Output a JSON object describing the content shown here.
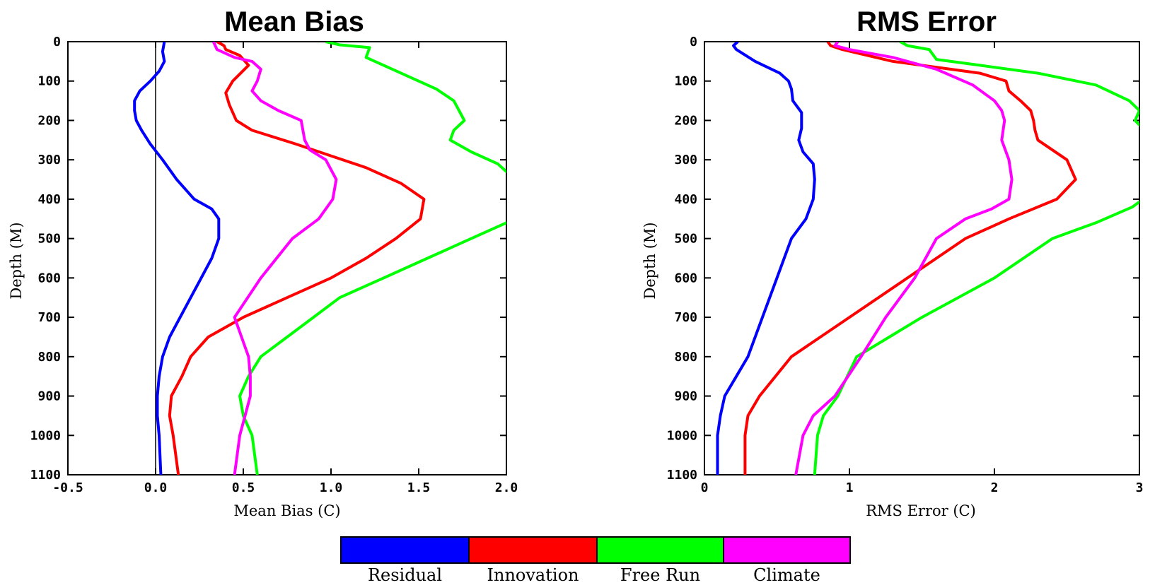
{
  "chart_data": [
    {
      "type": "line",
      "title": "Mean Bias",
      "xlabel": "Mean Bias (C)",
      "ylabel": "Depth (M)",
      "xlim": [
        -0.5,
        2.0
      ],
      "ylim": [
        0,
        1100
      ],
      "y_inverted": true,
      "xticks": [
        "-0.5",
        "0.0",
        "0.5",
        "1.0",
        "1.5",
        "2.0"
      ],
      "yticks": [
        "0",
        "100",
        "200",
        "300",
        "400",
        "500",
        "600",
        "700",
        "800",
        "900",
        "1000",
        "1100"
      ],
      "reference_line_x": 0,
      "series": [
        {
          "name": "Residual",
          "color": "#0000ff",
          "x": [
            0.05,
            0.04,
            0.05,
            0.02,
            -0.03,
            -0.09,
            -0.12,
            -0.12,
            -0.11,
            -0.08,
            -0.03,
            0.04,
            0.12,
            0.22,
            0.32,
            0.36,
            0.36,
            0.32,
            0.26,
            0.2,
            0.14,
            0.08,
            0.04,
            0.02,
            0.01,
            0.01,
            0.02,
            0.03
          ],
          "y": [
            0,
            25,
            50,
            75,
            100,
            125,
            150,
            175,
            200,
            225,
            260,
            300,
            350,
            400,
            425,
            450,
            500,
            550,
            600,
            650,
            700,
            750,
            800,
            850,
            900,
            950,
            1000,
            1100
          ]
        },
        {
          "name": "Innovation",
          "color": "#ff0000",
          "x": [
            0.35,
            0.39,
            0.4,
            0.48,
            0.53,
            0.44,
            0.4,
            0.42,
            0.46,
            0.55,
            0.8,
            1.0,
            1.2,
            1.4,
            1.53,
            1.51,
            1.37,
            1.2,
            1.0,
            0.75,
            0.5,
            0.3,
            0.2,
            0.15,
            0.09,
            0.08,
            0.1,
            0.13
          ],
          "y": [
            0,
            10,
            20,
            35,
            60,
            100,
            130,
            160,
            200,
            225,
            260,
            290,
            320,
            360,
            400,
            450,
            500,
            550,
            600,
            650,
            700,
            750,
            800,
            850,
            900,
            950,
            1000,
            1100
          ]
        },
        {
          "name": "Free Run",
          "color": "#00ff00",
          "x": [
            0.97,
            1.05,
            1.22,
            1.2,
            1.3,
            1.45,
            1.6,
            1.7,
            1.76,
            1.7,
            1.68,
            1.8,
            1.95,
            2.05,
            2.13,
            2.05,
            1.8,
            1.55,
            1.3,
            1.05,
            0.9,
            0.75,
            0.6,
            0.53,
            0.48,
            0.5,
            0.55,
            0.58
          ],
          "y": [
            0,
            8,
            15,
            40,
            60,
            90,
            120,
            150,
            200,
            225,
            250,
            280,
            310,
            350,
            400,
            450,
            500,
            550,
            600,
            650,
            700,
            750,
            800,
            850,
            900,
            950,
            1000,
            1100
          ]
        },
        {
          "name": "Climate",
          "color": "#ff00ff",
          "x": [
            0.33,
            0.35,
            0.45,
            0.55,
            0.6,
            0.58,
            0.55,
            0.6,
            0.7,
            0.83,
            0.85,
            0.88,
            0.97,
            1.03,
            1.01,
            0.93,
            0.78,
            0.6,
            0.45,
            0.49,
            0.53,
            0.54,
            0.54,
            0.51,
            0.48,
            0.45
          ],
          "y": [
            0,
            20,
            40,
            50,
            70,
            100,
            125,
            150,
            175,
            200,
            250,
            275,
            300,
            350,
            400,
            450,
            500,
            600,
            700,
            750,
            800,
            850,
            900,
            950,
            1000,
            1100
          ]
        }
      ]
    },
    {
      "type": "line",
      "title": "RMS Error",
      "xlabel": "RMS Error (C)",
      "ylabel": "Depth (M)",
      "xlim": [
        0,
        3
      ],
      "ylim": [
        0,
        1100
      ],
      "y_inverted": true,
      "xticks": [
        "0",
        "1",
        "2",
        "3"
      ],
      "yticks": [
        "0",
        "100",
        "200",
        "300",
        "400",
        "500",
        "600",
        "700",
        "800",
        "900",
        "1000",
        "1100"
      ],
      "series": [
        {
          "name": "Residual",
          "color": "#0000ff",
          "x": [
            0.23,
            0.2,
            0.22,
            0.35,
            0.52,
            0.58,
            0.6,
            0.61,
            0.67,
            0.67,
            0.65,
            0.68,
            0.75,
            0.76,
            0.75,
            0.7,
            0.6,
            0.5,
            0.4,
            0.3,
            0.22,
            0.14,
            0.11,
            0.09,
            0.09
          ],
          "y": [
            0,
            10,
            20,
            50,
            80,
            100,
            120,
            150,
            180,
            220,
            250,
            280,
            310,
            350,
            400,
            450,
            500,
            600,
            700,
            800,
            850,
            900,
            950,
            1000,
            1100
          ]
        },
        {
          "name": "Innovation",
          "color": "#ff0000",
          "x": [
            0.85,
            0.87,
            0.95,
            1.3,
            1.7,
            1.9,
            2.08,
            2.1,
            2.18,
            2.25,
            2.27,
            2.28,
            2.3,
            2.5,
            2.56,
            2.43,
            2.1,
            1.8,
            1.4,
            1.0,
            0.6,
            0.38,
            0.3,
            0.28,
            0.28
          ],
          "y": [
            0,
            10,
            20,
            50,
            70,
            80,
            100,
            125,
            150,
            175,
            200,
            225,
            250,
            300,
            350,
            400,
            450,
            500,
            600,
            700,
            800,
            900,
            950,
            1000,
            1100
          ]
        },
        {
          "name": "Free Run",
          "color": "#00ff00",
          "x": [
            1.35,
            1.4,
            1.55,
            1.6,
            1.9,
            2.3,
            2.7,
            2.93,
            3.0,
            2.97,
            3.05,
            3.12,
            3.15,
            3.1,
            2.95,
            2.7,
            2.4,
            2.0,
            1.5,
            1.05,
            0.92,
            0.82,
            0.78,
            0.76
          ],
          "y": [
            0,
            10,
            20,
            45,
            60,
            80,
            110,
            150,
            175,
            200,
            230,
            280,
            330,
            380,
            420,
            460,
            500,
            600,
            700,
            800,
            900,
            950,
            1000,
            1100
          ]
        },
        {
          "name": "Climate",
          "color": "#ff00ff",
          "x": [
            0.92,
            0.9,
            1.0,
            1.3,
            1.6,
            1.85,
            2.0,
            2.05,
            2.07,
            2.05,
            2.1,
            2.12,
            2.1,
            1.98,
            1.8,
            1.6,
            1.45,
            1.25,
            1.08,
            0.9,
            0.75,
            0.68,
            0.63
          ],
          "y": [
            0,
            10,
            20,
            40,
            70,
            110,
            150,
            175,
            200,
            250,
            300,
            350,
            400,
            425,
            450,
            500,
            600,
            700,
            800,
            900,
            950,
            1000,
            1100
          ]
        }
      ]
    }
  ],
  "legend": {
    "placement": "bottom-center",
    "items": [
      {
        "label": "Residual",
        "color": "#0000ff"
      },
      {
        "label": "Innovation",
        "color": "#ff0000"
      },
      {
        "label": "Free Run",
        "color": "#00ff00"
      },
      {
        "label": "Climate",
        "color": "#ff00ff"
      }
    ]
  }
}
